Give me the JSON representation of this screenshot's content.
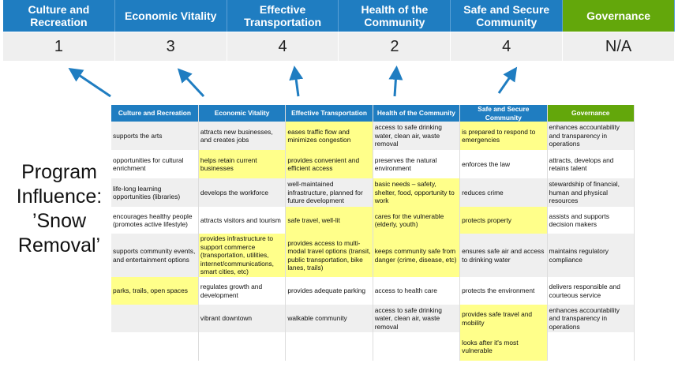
{
  "summary": {
    "headers": [
      "Culture and Recreation",
      "Economic Vitality",
      "Effective Transportation",
      "Health of the Community",
      "Safe and Secure Community",
      "Governance"
    ],
    "scores": [
      "1",
      "3",
      "4",
      "2",
      "4",
      "N/A"
    ]
  },
  "program_label": [
    "Program",
    "Influence:",
    "’Snow",
    "Removal’"
  ],
  "colors": {
    "header_blue": "#1f7dc1",
    "governance_green": "#63a70b",
    "highlight": "#ffff8a",
    "arrow": "#1f7dc1"
  },
  "table": {
    "headers": [
      "Culture and Recreation",
      "Economic Vitality",
      "Effective Transportation",
      "Health of the Community",
      "Safe and Secure Community",
      "Governance"
    ],
    "rows": [
      {
        "cells": [
          "supports the arts",
          "attracts new businesses, and creates jobs",
          "eases traffic flow and minimizes congestion",
          "access to safe drinking water, clean air, waste removal",
          "is prepared to respond to emergencies",
          "enhances accountability and transparency in operations"
        ],
        "highlight": [
          false,
          false,
          true,
          false,
          true,
          false
        ]
      },
      {
        "cells": [
          "opportunities for cultural enrichment",
          "helps retain current businesses",
          "provides convenient and efficient access",
          "preserves the natural environment",
          "enforces the law",
          "attracts, develops and retains talent"
        ],
        "highlight": [
          false,
          true,
          true,
          false,
          false,
          false
        ]
      },
      {
        "cells": [
          "life-long learning opportunities (libraries)",
          "develops the workforce",
          "well-maintained infrastructure, planned for future development",
          "basic needs – safety, shelter, food, opportunity to work",
          "reduces crime",
          "stewardship of financial, human and physical resources"
        ],
        "highlight": [
          false,
          false,
          false,
          true,
          false,
          false
        ]
      },
      {
        "cells": [
          "encourages healthy people (promotes active lifestyle)",
          "attracts visitors and tourism",
          "safe travel, well-lit",
          "cares for the vulnerable (elderly, youth)",
          "protects property",
          "assists and supports decision makers"
        ],
        "highlight": [
          false,
          false,
          true,
          true,
          true,
          false
        ]
      },
      {
        "cells": [
          "supports community events, and entertainment options",
          "provides infrastructure to support commerce (transportation, utilities, internet/communications, smart cities, etc)",
          "provides access to multi-modal travel options (transit, public transportation, bike lanes, trails)",
          "keeps community safe from danger (crime, disease, etc)",
          "ensures safe air and access to drinking water",
          "maintains regulatory compliance"
        ],
        "highlight": [
          false,
          true,
          true,
          true,
          false,
          false
        ]
      },
      {
        "cells": [
          "parks, trails, open spaces",
          "regulates growth and development",
          "provides adequate parking",
          "access to health care",
          "protects the environment",
          "delivers responsible and courteous service"
        ],
        "highlight": [
          true,
          false,
          false,
          false,
          false,
          false
        ]
      },
      {
        "cells": [
          "",
          "vibrant downtown",
          "walkable community",
          "access to safe drinking water, clean air, waste removal",
          "provides safe travel and mobility",
          "enhances accountability and transparency in operations"
        ],
        "highlight": [
          false,
          false,
          false,
          false,
          true,
          false
        ]
      },
      {
        "cells": [
          "",
          "",
          "",
          "",
          "looks after it's most vulnerable",
          ""
        ],
        "highlight": [
          false,
          false,
          false,
          false,
          true,
          false
        ]
      }
    ]
  }
}
